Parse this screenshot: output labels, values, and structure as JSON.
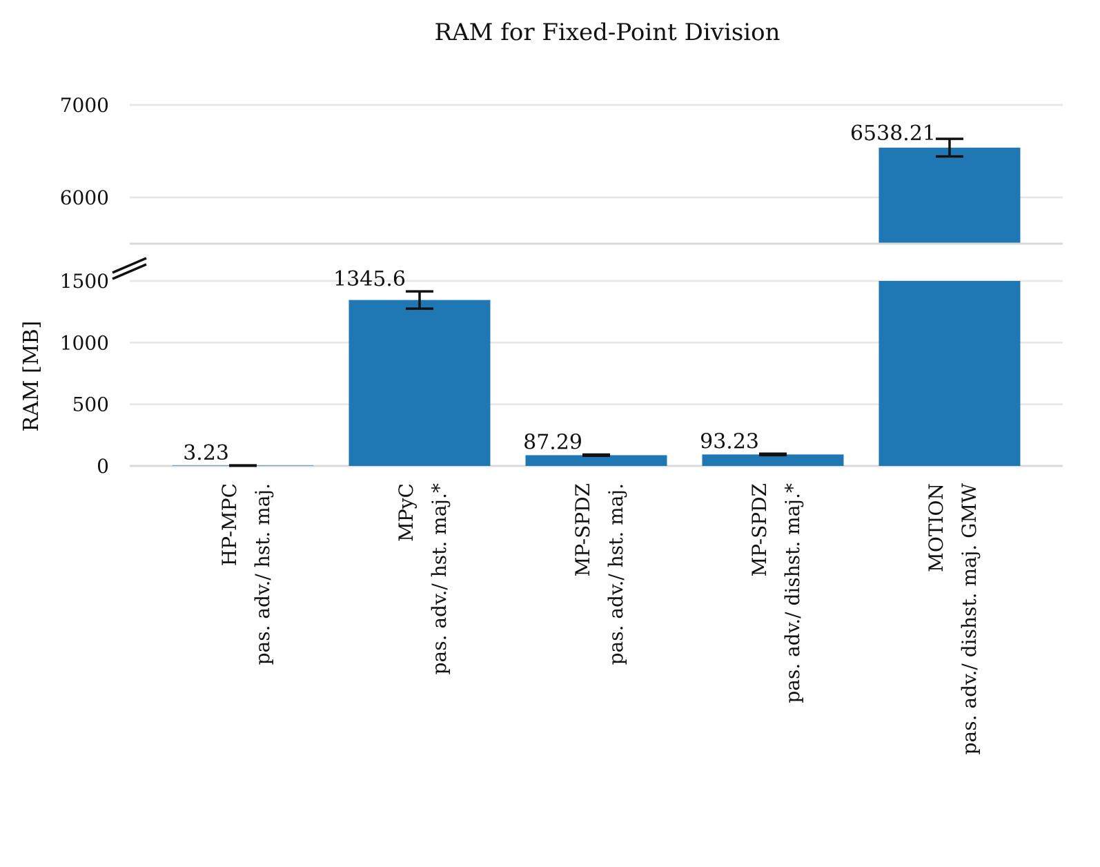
{
  "chart_data": {
    "type": "bar",
    "title": "RAM for Fixed-Point Division",
    "xlabel": "",
    "ylabel": "RAM [MB]",
    "broken_axis": true,
    "ylim_lower": [
      0,
      1500
    ],
    "ylim_upper": [
      5500,
      7000
    ],
    "yticks_lower": [
      "0",
      "500",
      "1000",
      "1500"
    ],
    "yticks_upper": [
      "6000",
      "7000"
    ],
    "grid": true,
    "bar_color": "#1f77b4",
    "categories": [
      {
        "line1": "HP-MPC",
        "line2": "pas. adv./ hst. maj."
      },
      {
        "line1": "MPyC",
        "line2": "pas. adv./ hst. maj.*"
      },
      {
        "line1": "MP-SPDZ",
        "line2": "pas. adv./ hst. maj."
      },
      {
        "line1": "MP-SPDZ",
        "line2": "pas. adv./ dishst. maj.*"
      },
      {
        "line1": "MOTION",
        "line2": "pas. adv./ dishst. maj. GMW"
      }
    ],
    "values": [
      3.23,
      1345.6,
      87.29,
      93.23,
      6538.21
    ],
    "value_labels": [
      "3.23",
      "1345.6",
      "87.29",
      "93.23",
      "6538.21"
    ],
    "error": [
      2,
      70,
      5,
      6,
      95
    ]
  }
}
